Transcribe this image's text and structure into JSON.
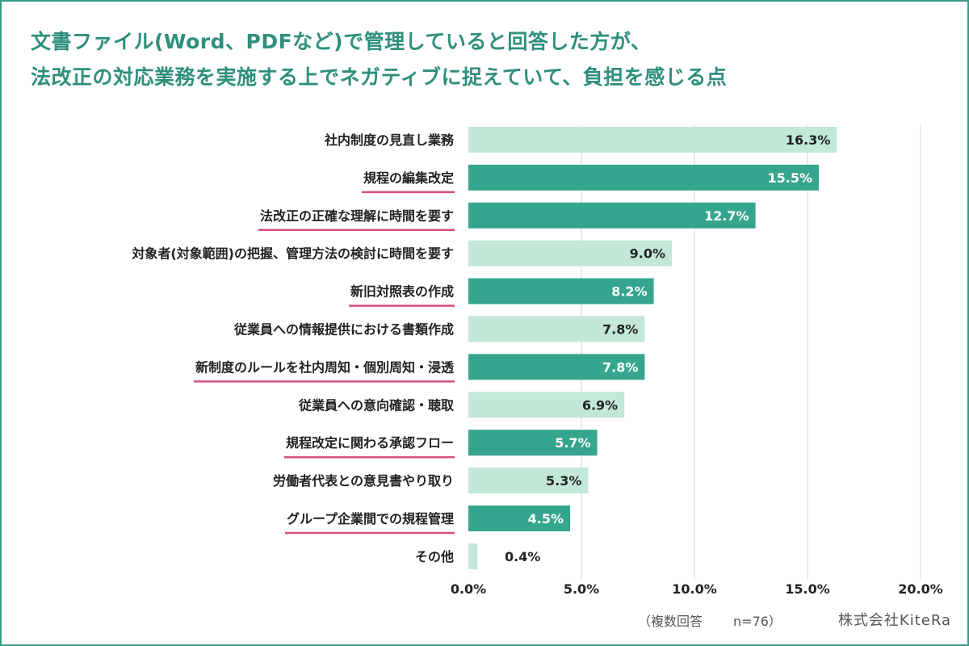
{
  "title_lines": [
    "文書ファイル(Word、PDFなど)で管理していると回答した方が、",
    "法改正の対応業務を実施する上でネガティブに捉えていて、負担を感じる点"
  ],
  "footnote": {
    "label": "（複数回答",
    "n": "n=76）"
  },
  "company": "株式会社KiteRa",
  "colors": {
    "frame": "#3a9a86",
    "title": "#2f8f7c",
    "bar_light": "#c3e8d8",
    "bar_dark": "#36a58d",
    "underline": "#d6507f",
    "grid": "#d4d4d4"
  },
  "chart_data": {
    "type": "bar",
    "orientation": "horizontal",
    "categories": [
      "社内制度の見直し業務",
      "規程の編集改定",
      "法改正の正確な理解に時間を要す",
      "対象者(対象範囲)の把握、管理方法の検討に時間を要す",
      "新旧対照表の作成",
      "従業員への情報提供における書類作成",
      "新制度のルールを社内周知・個別周知・浸透",
      "従業員への意向確認・聴取",
      "規程改定に関わる承認フロー",
      "労働者代表との意見書やり取り",
      "グループ企業間での規程管理",
      "その他"
    ],
    "values": [
      16.3,
      15.5,
      12.7,
      9.0,
      8.2,
      7.8,
      7.8,
      6.9,
      5.7,
      5.3,
      4.5,
      0.4
    ],
    "value_labels": [
      "16.3%",
      "15.5%",
      "12.7%",
      "9.0%",
      "8.2%",
      "7.8%",
      "7.8%",
      "6.9%",
      "5.7%",
      "5.3%",
      "4.5%",
      "0.4%"
    ],
    "highlighted": [
      false,
      true,
      true,
      false,
      true,
      false,
      true,
      false,
      true,
      false,
      true,
      false
    ],
    "xlim": [
      0,
      20
    ],
    "xticks": [
      "0.0%",
      "5.0%",
      "10.0%",
      "15.0%",
      "20.0%"
    ],
    "xtick_values": [
      0,
      5,
      10,
      15,
      20
    ],
    "grid": true,
    "legend": "none"
  }
}
